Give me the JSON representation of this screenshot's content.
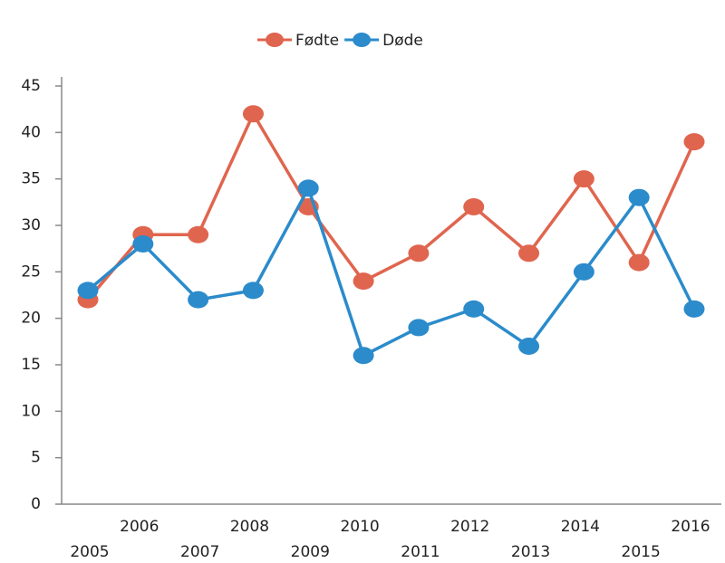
{
  "chart_data": {
    "type": "line",
    "categories": [
      "2005",
      "2006",
      "2007",
      "2008",
      "2009",
      "2010",
      "2011",
      "2012",
      "2013",
      "2014",
      "2015",
      "2016"
    ],
    "series": [
      {
        "name": "Fødte",
        "color": "#e0654e",
        "values": [
          22,
          29,
          29,
          42,
          32,
          24,
          27,
          32,
          27,
          35,
          26,
          39
        ]
      },
      {
        "name": "Døde",
        "color": "#2b8bcb",
        "values": [
          23,
          28,
          22,
          23,
          34,
          16,
          19,
          21,
          17,
          25,
          33,
          21
        ]
      }
    ],
    "ylim": [
      0,
      45
    ],
    "yticks": [
      0,
      5,
      10,
      15,
      20,
      25,
      30,
      35,
      40,
      45
    ],
    "grid": false,
    "legend": "top"
  }
}
